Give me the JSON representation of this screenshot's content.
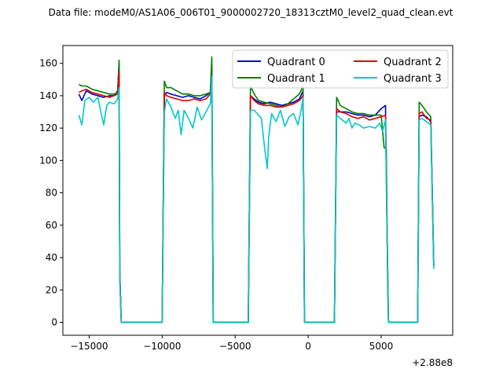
{
  "chart_data": {
    "type": "line",
    "title": "Data file: modeM0/AS1A06_006T01_9000002720_18313cztM0_level2_quad_clean.evt",
    "xlabel": "",
    "ylabel": "",
    "x_offset_label": "+2.88e8",
    "xlim": [
      -16800,
      9900
    ],
    "ylim": [
      -8,
      171
    ],
    "xticks": [
      -15000,
      -10000,
      -5000,
      0,
      5000
    ],
    "xtick_labels": [
      "−15000",
      "−10000",
      "−5000",
      "0",
      "5000"
    ],
    "yticks": [
      0,
      20,
      40,
      60,
      80,
      100,
      120,
      140,
      160
    ],
    "ytick_labels": [
      "0",
      "20",
      "40",
      "60",
      "80",
      "100",
      "120",
      "140",
      "160"
    ],
    "grid": false,
    "legend_position": "top-right",
    "legend_columns": 2,
    "colors": {
      "Quadrant 0": "#0000cc",
      "Quadrant 1": "#008000",
      "Quadrant 2": "#dd0000",
      "Quadrant 3": "#00c8c8"
    },
    "series": [
      {
        "name": "Quadrant 0",
        "color": "#0000cc",
        "points": [
          [
            -15700,
            141
          ],
          [
            -15500,
            137
          ],
          [
            -15200,
            143
          ],
          [
            -14800,
            141
          ],
          [
            -14400,
            140
          ],
          [
            -14000,
            139
          ],
          [
            -13600,
            140
          ],
          [
            -13300,
            140
          ],
          [
            -13050,
            143
          ],
          [
            -12950,
            160
          ],
          [
            -12900,
            30
          ],
          [
            -12800,
            0
          ],
          [
            -10000,
            0
          ],
          [
            -9850,
            140
          ],
          [
            -9700,
            142
          ],
          [
            -9400,
            141
          ],
          [
            -9000,
            140
          ],
          [
            -8600,
            139
          ],
          [
            -8200,
            140
          ],
          [
            -7800,
            139
          ],
          [
            -7400,
            138
          ],
          [
            -7000,
            140
          ],
          [
            -6700,
            142
          ],
          [
            -6600,
            158
          ],
          [
            -6500,
            0
          ],
          [
            -4100,
            0
          ],
          [
            -3950,
            140
          ],
          [
            -3700,
            138
          ],
          [
            -3400,
            136
          ],
          [
            -3000,
            135
          ],
          [
            -2600,
            136
          ],
          [
            -2200,
            135
          ],
          [
            -1800,
            134
          ],
          [
            -1400,
            135
          ],
          [
            -1000,
            136
          ],
          [
            -600,
            138
          ],
          [
            -350,
            143
          ],
          [
            -250,
            0
          ],
          [
            1800,
            0
          ],
          [
            1950,
            130
          ],
          [
            2200,
            130
          ],
          [
            2600,
            130
          ],
          [
            3000,
            129
          ],
          [
            3400,
            128
          ],
          [
            3800,
            128
          ],
          [
            4200,
            127
          ],
          [
            4600,
            128
          ],
          [
            5000,
            132
          ],
          [
            5300,
            134
          ],
          [
            5400,
            60
          ],
          [
            5500,
            0
          ],
          [
            7500,
            0
          ],
          [
            7600,
            127
          ],
          [
            7800,
            128
          ],
          [
            8100,
            127
          ],
          [
            8400,
            124
          ],
          [
            8600,
            35
          ]
        ]
      },
      {
        "name": "Quadrant 1",
        "color": "#008000",
        "points": [
          [
            -15700,
            147
          ],
          [
            -15500,
            146
          ],
          [
            -15200,
            146
          ],
          [
            -14800,
            144
          ],
          [
            -14400,
            143
          ],
          [
            -14000,
            142
          ],
          [
            -13600,
            141
          ],
          [
            -13300,
            141
          ],
          [
            -13050,
            142
          ],
          [
            -12950,
            162
          ],
          [
            -12900,
            30
          ],
          [
            -12800,
            0
          ],
          [
            -10000,
            0
          ],
          [
            -9850,
            149
          ],
          [
            -9700,
            145
          ],
          [
            -9400,
            145
          ],
          [
            -9000,
            143
          ],
          [
            -8600,
            141
          ],
          [
            -8200,
            141
          ],
          [
            -7800,
            140
          ],
          [
            -7400,
            140
          ],
          [
            -7000,
            141
          ],
          [
            -6700,
            142
          ],
          [
            -6600,
            164
          ],
          [
            -6500,
            0
          ],
          [
            -4100,
            0
          ],
          [
            -3950,
            146
          ],
          [
            -3700,
            141
          ],
          [
            -3400,
            137
          ],
          [
            -3000,
            136
          ],
          [
            -2600,
            135
          ],
          [
            -2200,
            134
          ],
          [
            -1800,
            133
          ],
          [
            -1400,
            135
          ],
          [
            -1000,
            138
          ],
          [
            -600,
            141
          ],
          [
            -350,
            146
          ],
          [
            -250,
            0
          ],
          [
            1800,
            0
          ],
          [
            1950,
            139
          ],
          [
            2200,
            134
          ],
          [
            2600,
            132
          ],
          [
            3000,
            130
          ],
          [
            3400,
            129
          ],
          [
            3800,
            129
          ],
          [
            4200,
            128
          ],
          [
            4600,
            128
          ],
          [
            5000,
            128
          ],
          [
            5200,
            108
          ],
          [
            5350,
            107
          ],
          [
            5450,
            20
          ],
          [
            5500,
            0
          ],
          [
            7500,
            0
          ],
          [
            7600,
            136
          ],
          [
            7800,
            134
          ],
          [
            8100,
            130
          ],
          [
            8400,
            127
          ],
          [
            8600,
            35
          ]
        ]
      },
      {
        "name": "Quadrant 2",
        "color": "#dd0000",
        "points": [
          [
            -15700,
            142
          ],
          [
            -15500,
            143
          ],
          [
            -15200,
            144
          ],
          [
            -14800,
            142
          ],
          [
            -14400,
            141
          ],
          [
            -14000,
            140
          ],
          [
            -13600,
            139
          ],
          [
            -13300,
            140
          ],
          [
            -13050,
            141
          ],
          [
            -12950,
            155
          ],
          [
            -12900,
            30
          ],
          [
            -12800,
            0
          ],
          [
            -10000,
            0
          ],
          [
            -9850,
            142
          ],
          [
            -9700,
            140
          ],
          [
            -9400,
            139
          ],
          [
            -9000,
            138
          ],
          [
            -8600,
            137
          ],
          [
            -8200,
            137
          ],
          [
            -7800,
            138
          ],
          [
            -7400,
            137
          ],
          [
            -7000,
            138
          ],
          [
            -6700,
            141
          ],
          [
            -6600,
            152
          ],
          [
            -6500,
            0
          ],
          [
            -4100,
            0
          ],
          [
            -3950,
            140
          ],
          [
            -3700,
            137
          ],
          [
            -3400,
            135
          ],
          [
            -3000,
            134
          ],
          [
            -2600,
            134
          ],
          [
            -2200,
            133
          ],
          [
            -1800,
            133
          ],
          [
            -1400,
            134
          ],
          [
            -1000,
            135
          ],
          [
            -600,
            137
          ],
          [
            -350,
            140
          ],
          [
            -250,
            0
          ],
          [
            1800,
            0
          ],
          [
            1950,
            132
          ],
          [
            2200,
            130
          ],
          [
            2600,
            129
          ],
          [
            3000,
            127
          ],
          [
            3400,
            126
          ],
          [
            3800,
            127
          ],
          [
            4200,
            125
          ],
          [
            4600,
            126
          ],
          [
            5000,
            127
          ],
          [
            5300,
            128
          ],
          [
            5400,
            60
          ],
          [
            5500,
            0
          ],
          [
            7500,
            0
          ],
          [
            7600,
            129
          ],
          [
            7800,
            130
          ],
          [
            8100,
            126
          ],
          [
            8400,
            125
          ],
          [
            8600,
            35
          ]
        ]
      },
      {
        "name": "Quadrant 3",
        "color": "#00c8c8",
        "points": [
          [
            -15700,
            128
          ],
          [
            -15500,
            122
          ],
          [
            -15300,
            137
          ],
          [
            -15000,
            139
          ],
          [
            -14700,
            136
          ],
          [
            -14400,
            139
          ],
          [
            -14200,
            130
          ],
          [
            -14000,
            122
          ],
          [
            -13800,
            134
          ],
          [
            -13600,
            136
          ],
          [
            -13300,
            135
          ],
          [
            -13050,
            138
          ],
          [
            -12950,
            145
          ],
          [
            -12900,
            25
          ],
          [
            -12800,
            0
          ],
          [
            -10000,
            0
          ],
          [
            -9850,
            130
          ],
          [
            -9700,
            138
          ],
          [
            -9400,
            133
          ],
          [
            -9100,
            126
          ],
          [
            -8900,
            131
          ],
          [
            -8700,
            116
          ],
          [
            -8500,
            131
          ],
          [
            -8200,
            126
          ],
          [
            -7900,
            120
          ],
          [
            -7600,
            133
          ],
          [
            -7300,
            125
          ],
          [
            -7000,
            130
          ],
          [
            -6700,
            135
          ],
          [
            -6600,
            152
          ],
          [
            -6500,
            0
          ],
          [
            -4100,
            0
          ],
          [
            -3950,
            131
          ],
          [
            -3700,
            131
          ],
          [
            -3400,
            128
          ],
          [
            -3200,
            126
          ],
          [
            -3000,
            109
          ],
          [
            -2800,
            95
          ],
          [
            -2700,
            115
          ],
          [
            -2500,
            129
          ],
          [
            -2200,
            124
          ],
          [
            -1900,
            131
          ],
          [
            -1600,
            121
          ],
          [
            -1300,
            127
          ],
          [
            -1000,
            129
          ],
          [
            -700,
            122
          ],
          [
            -500,
            130
          ],
          [
            -350,
            139
          ],
          [
            -250,
            0
          ],
          [
            1800,
            0
          ],
          [
            1950,
            128
          ],
          [
            2200,
            126
          ],
          [
            2600,
            123
          ],
          [
            2800,
            126
          ],
          [
            3000,
            120
          ],
          [
            3200,
            123
          ],
          [
            3500,
            122
          ],
          [
            3800,
            120
          ],
          [
            4200,
            121
          ],
          [
            4600,
            120
          ],
          [
            4900,
            123
          ],
          [
            5100,
            118
          ],
          [
            5300,
            125
          ],
          [
            5400,
            55
          ],
          [
            5500,
            0
          ],
          [
            7500,
            0
          ],
          [
            7600,
            125
          ],
          [
            7800,
            126
          ],
          [
            8100,
            124
          ],
          [
            8400,
            122
          ],
          [
            8600,
            33
          ]
        ]
      }
    ]
  }
}
